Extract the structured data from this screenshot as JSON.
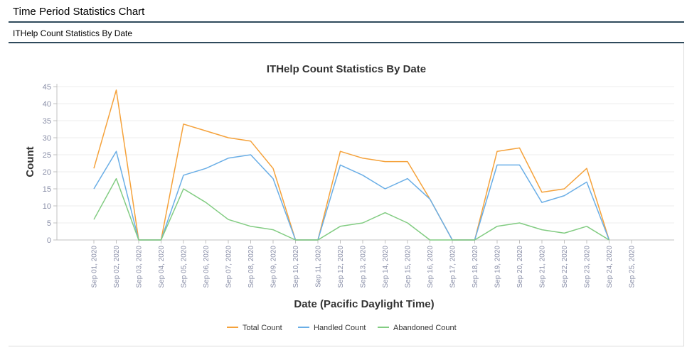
{
  "page": {
    "title": "Time Period Statistics Chart",
    "section_title": "ITHelp Count Statistics By Date"
  },
  "chart_data": {
    "type": "line",
    "title": "ITHelp Count Statistics By Date",
    "xlabel": "Date (Pacific Daylight Time)",
    "ylabel": "Count",
    "ylim": [
      0,
      45
    ],
    "yticks": [
      0,
      5,
      10,
      15,
      20,
      25,
      30,
      35,
      40,
      45
    ],
    "grid": "horizontal",
    "legend": "bottom-center",
    "categories": [
      "Sep 01, 2020",
      "Sep 02, 2020",
      "Sep 03, 2020",
      "Sep 04, 2020",
      "Sep 05, 2020",
      "Sep 06, 2020",
      "Sep 07, 2020",
      "Sep 08, 2020",
      "Sep 09, 2020",
      "Sep 10, 2020",
      "Sep 11, 2020",
      "Sep 12, 2020",
      "Sep 13, 2020",
      "Sep 14, 2020",
      "Sep 15, 2020",
      "Sep 16, 2020",
      "Sep 17, 2020",
      "Sep 18, 2020",
      "Sep 19, 2020",
      "Sep 20, 2020",
      "Sep 21, 2020",
      "Sep 22, 2020",
      "Sep 23, 2020",
      "Sep 24, 2020",
      "Sep 25, 2020"
    ],
    "series": [
      {
        "name": "Total Count",
        "color": "#f5a23b",
        "values": [
          21,
          44,
          0,
          0,
          34,
          32,
          30,
          29,
          21,
          0,
          0,
          26,
          24,
          23,
          23,
          12,
          0,
          0,
          26,
          27,
          14,
          15,
          21,
          0,
          null
        ]
      },
      {
        "name": "Handled Count",
        "color": "#6aaee6",
        "values": [
          15,
          26,
          0,
          0,
          19,
          21,
          24,
          25,
          18,
          0,
          0,
          22,
          19,
          15,
          18,
          12,
          0,
          0,
          22,
          22,
          11,
          13,
          17,
          0,
          null
        ]
      },
      {
        "name": "Abandoned Count",
        "color": "#82cc82",
        "values": [
          6,
          18,
          0,
          0,
          15,
          11,
          6,
          4,
          3,
          0,
          0,
          4,
          5,
          8,
          5,
          0,
          0,
          0,
          4,
          5,
          3,
          2,
          4,
          0,
          null
        ]
      }
    ]
  }
}
